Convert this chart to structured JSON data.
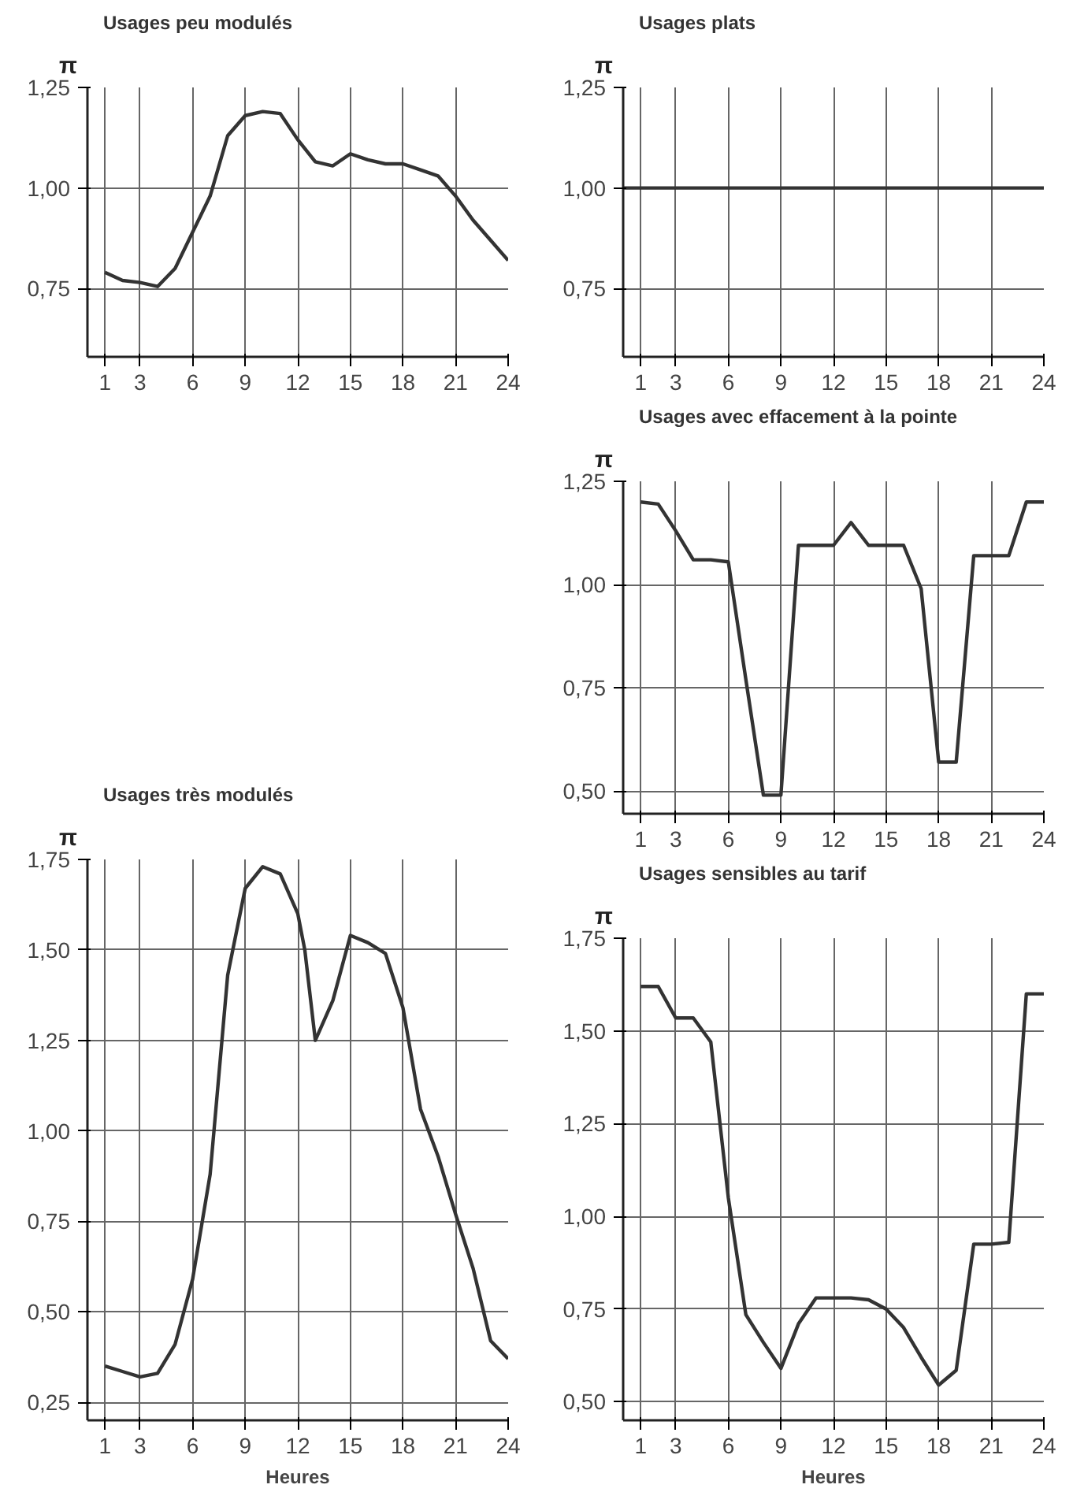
{
  "chart_data": [
    {
      "type": "line",
      "title": "Usages peu modulés",
      "ylabel": "π",
      "x": [
        1,
        2,
        3,
        4,
        5,
        6,
        7,
        8,
        9,
        10,
        11,
        12,
        13,
        14,
        15,
        16,
        17,
        18,
        19,
        20,
        21,
        22,
        23,
        24
      ],
      "series": [
        {
          "color": "#333333",
          "values": [
            0.79,
            0.77,
            0.765,
            0.755,
            0.8,
            0.89,
            0.98,
            1.13,
            1.18,
            1.19,
            1.185,
            1.12,
            1.065,
            1.055,
            1.085,
            1.07,
            1.06,
            1.06,
            1.045,
            1.03,
            0.98,
            0.92,
            0.87,
            0.82
          ]
        }
      ],
      "xlim": [
        0,
        24
      ],
      "xticks": [
        1,
        3,
        6,
        9,
        12,
        15,
        18,
        21,
        24
      ],
      "ylim": [
        0.58,
        1.25
      ],
      "yticks": [
        {
          "value": 0.75,
          "label": "0,75"
        },
        {
          "value": 1.0,
          "label": "1,00"
        },
        {
          "value": 1.25,
          "label": "1,25"
        }
      ],
      "grid": true
    },
    {
      "type": "line",
      "title": "Usages plats",
      "ylabel": "π",
      "x": [
        0,
        24
      ],
      "series": [
        {
          "color": "#333333",
          "values": [
            1.0,
            1.0
          ]
        }
      ],
      "xlim": [
        0,
        24
      ],
      "xticks": [
        1,
        3,
        6,
        9,
        12,
        15,
        18,
        21,
        24
      ],
      "ylim": [
        0.58,
        1.25
      ],
      "yticks": [
        {
          "value": 0.75,
          "label": "0,75"
        },
        {
          "value": 1.0,
          "label": "1,00"
        },
        {
          "value": 1.25,
          "label": "1,25"
        }
      ],
      "grid": true
    },
    {
      "type": "line",
      "title": "Usages avec effacement à la pointe",
      "ylabel": "π",
      "x": [
        1,
        2,
        3,
        4,
        5,
        6,
        7,
        8,
        9,
        10,
        11,
        12,
        13,
        14,
        15,
        16,
        17,
        18,
        19,
        20,
        21,
        22,
        23,
        24
      ],
      "series": [
        {
          "color": "#333333",
          "values": [
            1.2,
            1.195,
            1.13,
            1.06,
            1.06,
            1.055,
            0.77,
            0.49,
            0.49,
            1.095,
            1.095,
            1.095,
            1.15,
            1.095,
            1.095,
            1.095,
            0.99,
            0.57,
            0.57,
            1.07,
            1.07,
            1.07,
            1.2,
            1.2
          ]
        }
      ],
      "xlim": [
        0,
        24
      ],
      "xticks": [
        1,
        3,
        6,
        9,
        12,
        15,
        18,
        21,
        24
      ],
      "ylim": [
        0.445,
        1.25
      ],
      "yticks": [
        {
          "value": 0.5,
          "label": "0,50"
        },
        {
          "value": 0.75,
          "label": "0,75"
        },
        {
          "value": 1.0,
          "label": "1,00"
        },
        {
          "value": 1.25,
          "label": "1,25"
        }
      ],
      "grid": true
    },
    {
      "type": "line",
      "title": "Usages très modulés",
      "ylabel": "π",
      "xlabel": "Heures",
      "x": [
        1,
        2,
        3,
        4,
        5,
        6,
        7,
        8,
        9,
        10,
        11,
        12,
        12.4,
        13,
        14,
        15,
        16,
        17,
        18,
        19,
        20,
        21,
        22,
        23,
        24
      ],
      "series": [
        {
          "color": "#333333",
          "values": [
            0.35,
            0.335,
            0.32,
            0.33,
            0.41,
            0.59,
            0.88,
            1.43,
            1.67,
            1.73,
            1.71,
            1.6,
            1.5,
            1.25,
            1.36,
            1.54,
            1.52,
            1.49,
            1.34,
            1.06,
            0.93,
            0.77,
            0.62,
            0.42,
            0.37
          ]
        }
      ],
      "xlim": [
        0,
        24
      ],
      "xticks": [
        1,
        3,
        6,
        9,
        12,
        15,
        18,
        21,
        24
      ],
      "ylim": [
        0.2,
        1.75
      ],
      "yticks": [
        {
          "value": 0.25,
          "label": "0,25"
        },
        {
          "value": 0.5,
          "label": "0,50"
        },
        {
          "value": 0.75,
          "label": "0,75"
        },
        {
          "value": 1.0,
          "label": "1,00"
        },
        {
          "value": 1.25,
          "label": "1,25"
        },
        {
          "value": 1.5,
          "label": "1,50"
        },
        {
          "value": 1.75,
          "label": "1,75"
        }
      ],
      "grid": true
    },
    {
      "type": "line",
      "title": "Usages sensibles au tarif",
      "ylabel": "π",
      "xlabel": "Heures",
      "x": [
        1,
        2,
        3,
        4,
        5,
        6,
        7,
        8,
        9,
        10,
        11,
        12,
        13,
        14,
        15,
        16,
        17,
        18,
        19,
        20,
        21,
        22,
        23,
        24
      ],
      "series": [
        {
          "color": "#333333",
          "values": [
            1.62,
            1.62,
            1.535,
            1.535,
            1.47,
            1.05,
            0.735,
            0.66,
            0.59,
            0.71,
            0.78,
            0.78,
            0.78,
            0.775,
            0.75,
            0.7,
            0.62,
            0.545,
            0.585,
            0.925,
            0.925,
            0.93,
            1.6,
            1.6
          ]
        }
      ],
      "xlim": [
        0,
        24
      ],
      "xticks": [
        1,
        3,
        6,
        9,
        12,
        15,
        18,
        21,
        24
      ],
      "ylim": [
        0.45,
        1.75
      ],
      "yticks": [
        {
          "value": 0.5,
          "label": "0,50"
        },
        {
          "value": 0.75,
          "label": "0,75"
        },
        {
          "value": 1.0,
          "label": "1,00"
        },
        {
          "value": 1.25,
          "label": "1,25"
        },
        {
          "value": 1.5,
          "label": "1,50"
        },
        {
          "value": 1.75,
          "label": "1,75"
        }
      ],
      "grid": true
    }
  ]
}
